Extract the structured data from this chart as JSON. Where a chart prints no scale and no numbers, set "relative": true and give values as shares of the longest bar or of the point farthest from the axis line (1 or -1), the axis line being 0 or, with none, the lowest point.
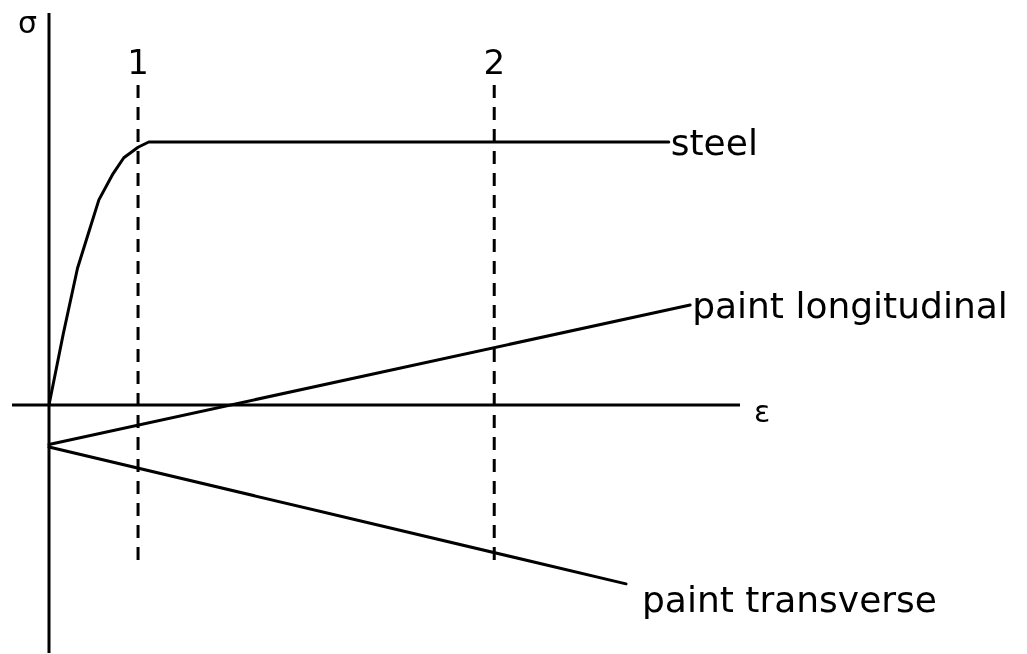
{
  "chart_data": {
    "type": "line",
    "xlabel": "ε",
    "ylabel": "σ",
    "relative": true,
    "xlim": [
      0.75,
      2.69
    ],
    "xticks": [
      1,
      2
    ],
    "grid": "x",
    "line_style": "solid",
    "series": [
      {
        "name": "steel",
        "color": "#000000",
        "x": [
          0.75,
          0.79,
          0.83,
          0.86,
          0.89,
          0.93,
          0.96,
          1.0,
          1.03,
          2.49
        ],
        "values": [
          0,
          0.27,
          0.52,
          0.65,
          0.78,
          0.88,
          0.94,
          0.98,
          1,
          1
        ]
      },
      {
        "name": "paint longitudinal",
        "color": "#000000",
        "x": [
          0.75,
          2.55
        ],
        "values": [
          -0.15,
          0.38
        ]
      },
      {
        "name": "paint transverse",
        "color": "#000000",
        "x": [
          0.75,
          2.37
        ],
        "values": [
          -0.16,
          -0.68
        ]
      }
    ]
  }
}
